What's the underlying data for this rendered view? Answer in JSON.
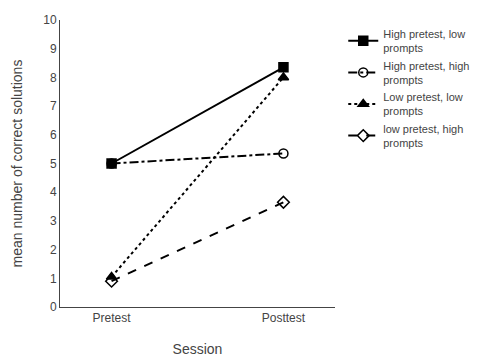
{
  "chart_data": {
    "type": "line",
    "categories": [
      "Pretest",
      "Posttest"
    ],
    "series": [
      {
        "name": "High pretest, low\nprompts",
        "color": "black",
        "marker": "square",
        "line_style": "solid",
        "values": [
          5.0,
          8.35
        ]
      },
      {
        "name": "High pretest, high\nprompts",
        "color": "black",
        "marker": "circle-open",
        "line_style": "dashdot",
        "values": [
          5.0,
          5.35
        ]
      },
      {
        "name": "Low pretest, low\nprompts",
        "color": "black",
        "marker": "triangle-up",
        "line_style": "dot",
        "values": [
          1.05,
          8.0
        ]
      },
      {
        "name": "low pretest, high\nprompts",
        "color": "black",
        "marker": "diamond-open",
        "line_style": "dash",
        "values": [
          0.9,
          3.65
        ]
      }
    ],
    "xlabel": "Session",
    "ylabel": "mean number of correct solutions",
    "ylim": [
      0,
      10
    ],
    "yticks": [
      0,
      1,
      2,
      3,
      4,
      5,
      6,
      7,
      8,
      9,
      10
    ],
    "grid": false,
    "legend": "right"
  }
}
